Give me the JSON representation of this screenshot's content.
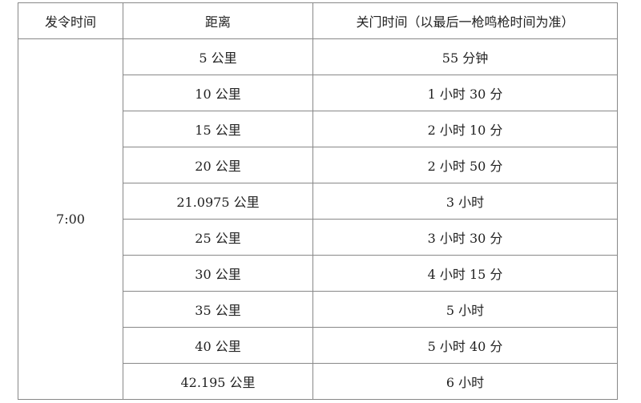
{
  "headers": [
    "发令时间",
    "距离",
    "关门时间（以最后一枪鸣枪时间为准）"
  ],
  "start_time": "7:00",
  "rows": [
    {
      "distance": "5 公里",
      "cutoff": "55 分钟"
    },
    {
      "distance": "10 公里",
      "cutoff": "1 小时 30 分"
    },
    {
      "distance": "15 公里",
      "cutoff": "2 小时 10 分"
    },
    {
      "distance": "20 公里",
      "cutoff": "2 小时 50 分"
    },
    {
      "distance": "21.0975 公里",
      "cutoff": "3 小时"
    },
    {
      "distance": "25 公里",
      "cutoff": "3 小时 30 分"
    },
    {
      "distance": "30 公里",
      "cutoff": "4 小时 15 分"
    },
    {
      "distance": "35 公里",
      "cutoff": "5 小时"
    },
    {
      "distance": "40 公里",
      "cutoff": "5 小时 40 分"
    },
    {
      "distance": "42.195 公里",
      "cutoff": "6 小时"
    }
  ]
}
